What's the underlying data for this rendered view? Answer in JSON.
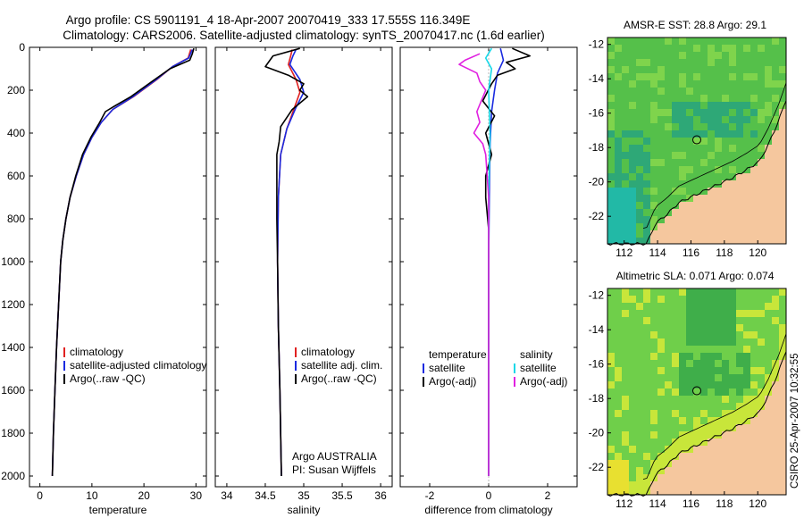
{
  "title_line1": "Argo profile: CS 5901191_4 18-Apr-2007 20070419_333 17.555S 116.349E",
  "title_line2": "Climatology: CARS2006. Satellite-adjusted climatology: synTS_20070417.nc (1.6d earlier)",
  "credit": "CSIRO 25-Apr-2007 10:32:55",
  "chart_data": [
    {
      "type": "line",
      "xlabel": "temperature",
      "ylabel": "",
      "xlim": [
        -2,
        32
      ],
      "ylim": [
        2050,
        0
      ],
      "xticks": [
        0,
        10,
        20,
        30
      ],
      "yticks": [
        0,
        200,
        400,
        600,
        800,
        1000,
        1200,
        1400,
        1600,
        1800,
        2000
      ],
      "legend": [
        "climatology",
        "satellite-adjusted climatology",
        "Argo(..raw -QC)"
      ],
      "series": [
        {
          "name": "climatology",
          "color": "#e02020",
          "points": [
            [
              29.0,
              10
            ],
            [
              28.5,
              50
            ],
            [
              25.5,
              90
            ],
            [
              22.5,
              150
            ],
            [
              18.0,
              230
            ],
            [
              14.0,
              290
            ],
            [
              11.8,
              350
            ],
            [
              10.0,
              420
            ],
            [
              8.4,
              500
            ],
            [
              7.0,
              600
            ],
            [
              5.8,
              700
            ],
            [
              5.0,
              800
            ],
            [
              4.4,
              900
            ],
            [
              4.0,
              1000
            ],
            [
              3.6,
              1200
            ],
            [
              3.2,
              1400
            ],
            [
              2.9,
              1600
            ],
            [
              2.6,
              1800
            ],
            [
              2.4,
              2000
            ]
          ]
        },
        {
          "name": "satellite-adjusted climatology",
          "color": "#1a2ae0",
          "points": [
            [
              29.3,
              10
            ],
            [
              28.6,
              50
            ],
            [
              25.5,
              90
            ],
            [
              22.4,
              150
            ],
            [
              17.9,
              230
            ],
            [
              14.0,
              290
            ],
            [
              11.8,
              350
            ],
            [
              10.0,
              420
            ],
            [
              8.4,
              500
            ],
            [
              7.0,
              600
            ],
            [
              5.8,
              700
            ],
            [
              5.0,
              800
            ],
            [
              4.4,
              900
            ],
            [
              4.0,
              1000
            ],
            [
              3.6,
              1200
            ],
            [
              3.2,
              1400
            ],
            [
              2.9,
              1600
            ],
            [
              2.6,
              1800
            ],
            [
              2.4,
              2000
            ]
          ]
        },
        {
          "name": "Argo(..raw -QC)",
          "color": "#000000",
          "points": [
            [
              29.6,
              5
            ],
            [
              29.3,
              30
            ],
            [
              28.8,
              60
            ],
            [
              25.0,
              100
            ],
            [
              21.5,
              160
            ],
            [
              17.5,
              230
            ],
            [
              14.3,
              275
            ],
            [
              12.6,
              300
            ],
            [
              11.5,
              350
            ],
            [
              9.8,
              420
            ],
            [
              8.2,
              500
            ],
            [
              6.9,
              600
            ],
            [
              5.8,
              700
            ],
            [
              5.0,
              800
            ],
            [
              4.4,
              900
            ],
            [
              4.0,
              1000
            ],
            [
              3.6,
              1200
            ],
            [
              3.2,
              1400
            ],
            [
              2.9,
              1600
            ],
            [
              2.6,
              1800
            ],
            [
              2.4,
              2000
            ]
          ]
        }
      ]
    },
    {
      "type": "line",
      "xlabel": "salinity",
      "ylabel": "",
      "xlim": [
        33.85,
        36.15
      ],
      "ylim": [
        2050,
        0
      ],
      "xticks": [
        34,
        34.5,
        35,
        35.5,
        36
      ],
      "legend": [
        "climatology",
        "satellite adj. clim.",
        "Argo(..raw -QC)"
      ],
      "annotations": [
        "Argo AUSTRALIA",
        "PI: Susan Wijffels"
      ],
      "series": [
        {
          "name": "climatology",
          "color": "#e02020",
          "points": [
            [
              34.85,
              10
            ],
            [
              34.83,
              40
            ],
            [
              34.8,
              80
            ],
            [
              34.9,
              150
            ],
            [
              34.95,
              210
            ],
            [
              34.88,
              280
            ],
            [
              34.78,
              380
            ],
            [
              34.7,
              500
            ],
            [
              34.67,
              700
            ],
            [
              34.66,
              1000
            ],
            [
              34.67,
              1300
            ],
            [
              34.69,
              1600
            ],
            [
              34.71,
              2000
            ]
          ]
        },
        {
          "name": "satellite adj. clim.",
          "color": "#1a2ae0",
          "points": [
            [
              34.9,
              10
            ],
            [
              34.86,
              40
            ],
            [
              34.82,
              80
            ],
            [
              34.95,
              150
            ],
            [
              35.0,
              210
            ],
            [
              34.9,
              280
            ],
            [
              34.78,
              380
            ],
            [
              34.7,
              500
            ],
            [
              34.67,
              700
            ],
            [
              34.66,
              1000
            ],
            [
              34.67,
              1300
            ],
            [
              34.69,
              1600
            ],
            [
              34.71,
              2000
            ]
          ]
        },
        {
          "name": "Argo(..raw -QC)",
          "color": "#000000",
          "points": [
            [
              34.95,
              5
            ],
            [
              34.6,
              40
            ],
            [
              34.5,
              90
            ],
            [
              34.8,
              130
            ],
            [
              35.0,
              170
            ],
            [
              34.95,
              200
            ],
            [
              35.05,
              230
            ],
            [
              34.85,
              290
            ],
            [
              34.7,
              370
            ],
            [
              34.68,
              440
            ],
            [
              34.65,
              500
            ],
            [
              34.65,
              600
            ],
            [
              34.65,
              800
            ],
            [
              34.66,
              1000
            ],
            [
              34.67,
              1300
            ],
            [
              34.69,
              1600
            ],
            [
              34.71,
              2000
            ]
          ]
        }
      ]
    },
    {
      "type": "line",
      "xlabel": "difference from climatology",
      "ylabel": "",
      "xlim": [
        -3,
        3
      ],
      "ylim": [
        2050,
        0
      ],
      "xticks": [
        -2,
        0,
        2
      ],
      "legend": [
        "temperature",
        "satellite",
        "Argo(-adj)",
        "salinity",
        "satellite",
        "Argo(-adj)"
      ],
      "series": [
        {
          "name": "temperature satellite",
          "color": "#1a2ae0",
          "points": [
            [
              0.4,
              5
            ],
            [
              0.5,
              60
            ],
            [
              0.3,
              120
            ],
            [
              0.2,
              200
            ],
            [
              0.1,
              300
            ],
            [
              0.05,
              450
            ],
            [
              0.02,
              700
            ],
            [
              0.0,
              1000
            ],
            [
              0.0,
              1500
            ],
            [
              0.0,
              2000
            ]
          ]
        },
        {
          "name": "temperature Argo(-adj)",
          "color": "#000000",
          "points": [
            [
              0.8,
              5
            ],
            [
              1.4,
              40
            ],
            [
              0.6,
              70
            ],
            [
              0.9,
              100
            ],
            [
              0.3,
              130
            ],
            [
              0.1,
              170
            ],
            [
              -0.2,
              250
            ],
            [
              0.2,
              320
            ],
            [
              -0.1,
              400
            ],
            [
              0.1,
              500
            ],
            [
              -0.1,
              600
            ],
            [
              -0.1,
              700
            ],
            [
              0.0,
              850
            ],
            [
              0.0,
              1000
            ],
            [
              0.0,
              1500
            ],
            [
              0.0,
              2000
            ]
          ]
        },
        {
          "name": "salinity satellite",
          "color": "#18d8e8",
          "points": [
            [
              0.1,
              5
            ],
            [
              -0.1,
              50
            ],
            [
              0.1,
              100
            ],
            [
              0.0,
              200
            ],
            [
              0.05,
              400
            ],
            [
              0.0,
              700
            ],
            [
              0.0,
              1200
            ],
            [
              0.0,
              2000
            ]
          ]
        },
        {
          "name": "salinity Argo(-adj)",
          "color": "#e020e0",
          "points": [
            [
              -0.3,
              30
            ],
            [
              -0.8,
              60
            ],
            [
              -1.0,
              80
            ],
            [
              -0.4,
              120
            ],
            [
              -0.3,
              160
            ],
            [
              -0.1,
              200
            ],
            [
              -0.4,
              300
            ],
            [
              -0.3,
              350
            ],
            [
              -0.5,
              400
            ],
            [
              -0.2,
              450
            ],
            [
              -0.1,
              500
            ],
            [
              0.0,
              700
            ],
            [
              0.0,
              1000
            ],
            [
              0.0,
              1500
            ],
            [
              0.0,
              2000
            ]
          ]
        }
      ]
    },
    {
      "type": "heatmap",
      "title": "AMSR-E SST: 28.8 Argo: 29.1",
      "xlim": [
        111,
        121.7
      ],
      "ylim": [
        -23.6,
        -11.6
      ],
      "xticks": [
        112,
        114,
        116,
        118,
        120
      ],
      "yticks": [
        -12,
        -14,
        -16,
        -18,
        -20,
        -22
      ],
      "marker": [
        116.35,
        -17.55
      ],
      "colors": {
        "land": "#f5c79e",
        "sea_main": "#55c04a",
        "sea_warm": "#7fd44c",
        "sea_cool": "#2ea877",
        "sea_deep": "#22b9a6"
      }
    },
    {
      "type": "heatmap",
      "title": "Altimetric SLA: 0.071 Argo: 0.074",
      "xlim": [
        111,
        121.7
      ],
      "ylim": [
        -23.6,
        -11.6
      ],
      "xticks": [
        112,
        114,
        116,
        118,
        120
      ],
      "yticks": [
        -12,
        -14,
        -16,
        -18,
        -20,
        -22
      ],
      "marker": [
        116.35,
        -17.55
      ],
      "colors": {
        "land": "#f5c79e",
        "sea_main": "#6fcf4a",
        "sea_high": "#c8e63a",
        "sea_low": "#3fae4a",
        "sea_peak": "#e8e030"
      }
    }
  ]
}
